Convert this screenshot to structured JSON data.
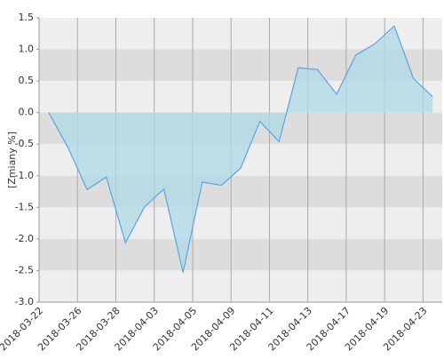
{
  "chart_data": {
    "type": "area",
    "y_label": "[Zmiany %]",
    "categories": [
      "2018-03-22",
      null,
      "2018-03-26",
      null,
      "2018-03-28",
      null,
      "2018-04-03",
      null,
      "2018-04-05",
      null,
      "2018-04-09",
      null,
      "2018-04-11",
      null,
      "2018-04-13",
      null,
      "2018-04-17",
      null,
      "2018-04-19",
      null,
      "2018-04-23"
    ],
    "values": [
      0.0,
      -0.55,
      -1.22,
      -1.02,
      -2.06,
      -1.49,
      -1.21,
      -2.53,
      -1.1,
      -1.15,
      -0.88,
      -0.14,
      -0.46,
      0.71,
      0.68,
      0.29,
      0.91,
      1.09,
      1.37,
      0.54,
      0.25
    ],
    "color": "#5ba3e6",
    "fill": "#add8e6",
    "ylim": [
      -3,
      1.5
    ],
    "yticks": [
      {
        "value": -3,
        "label": "-3.0"
      },
      -2.5,
      {
        "value": -2,
        "label": "-2.0"
      },
      -1.5,
      {
        "value": -1,
        "label": "-1.0"
      },
      -0.5,
      {
        "value": 0,
        "label": "0.0"
      },
      0.5,
      {
        "value": 1,
        "label": "1.0"
      },
      1.5
    ],
    "grid": true,
    "band_colors": [
      "#eeeeee",
      "#dddddd"
    ]
  }
}
